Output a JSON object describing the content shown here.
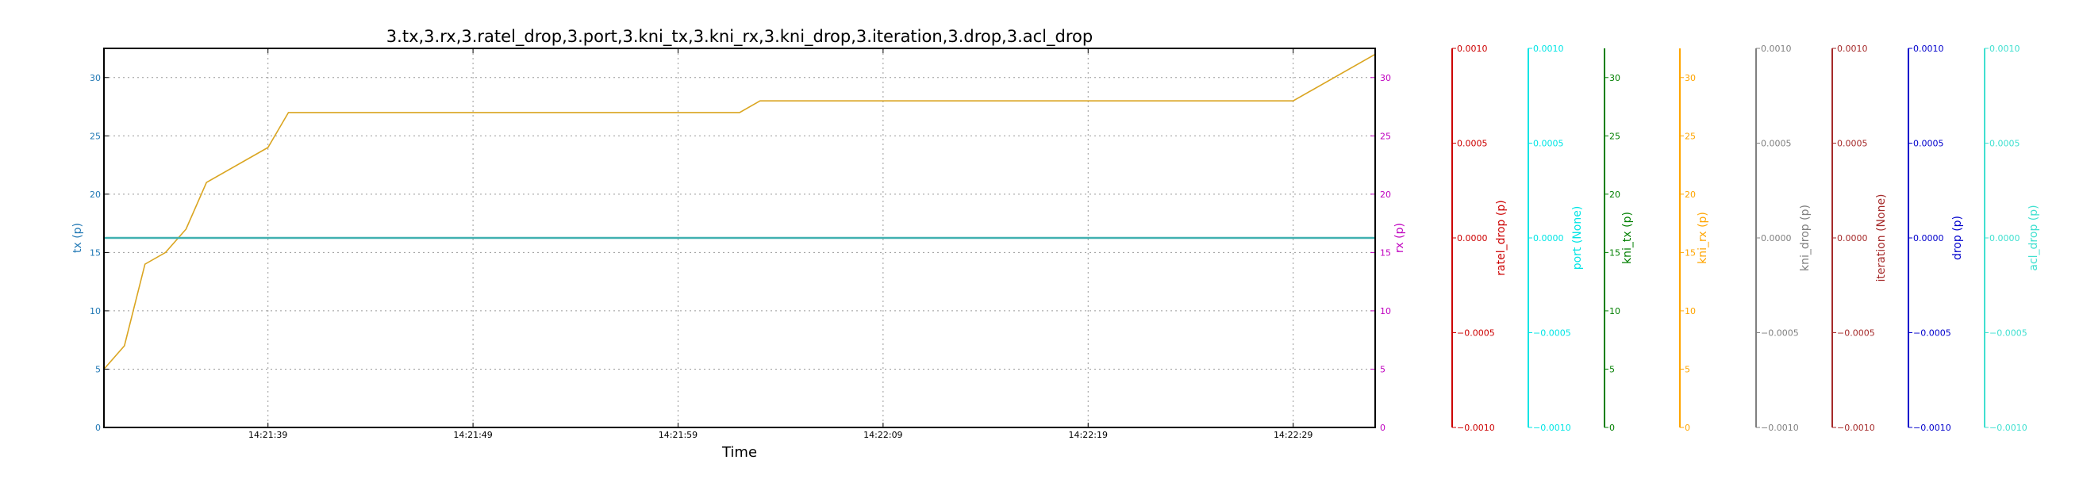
{
  "chart_data": {
    "type": "line",
    "title": "3.tx,3.rx,3.ratel_drop,3.port,3.kni_tx,3.kni_rx,3.kni_drop,3.iteration,3.drop,3.acl_drop",
    "xlabel": "Time",
    "x_ticks": [
      "14:21:39",
      "14:21:49",
      "14:21:59",
      "14:22:09",
      "14:22:19",
      "14:22:29"
    ],
    "x_tick_seconds": [
      39,
      49,
      59,
      69,
      79,
      89
    ],
    "xlim_seconds": [
      31,
      93
    ],
    "grid": true,
    "axes": [
      {
        "label": "tx (p)",
        "color": "#1f77b4",
        "side": "left",
        "ylim": [
          0,
          32.5
        ],
        "ticks": [
          "0",
          "5",
          "10",
          "15",
          "20",
          "25",
          "30"
        ]
      },
      {
        "label": "rx (p)",
        "color": "#bf00bf",
        "side": "right",
        "ylim": [
          0,
          32.5
        ],
        "ticks": [
          "0",
          "5",
          "10",
          "15",
          "20",
          "25",
          "30"
        ]
      },
      {
        "label": "ratel_drop (p)",
        "color": "#cc0000",
        "side": "right",
        "ylim": [
          -0.001,
          0.001
        ],
        "ticks": [
          "−0.0010",
          "−0.0005",
          "0.0000",
          "0.0005",
          "0.0010"
        ]
      },
      {
        "label": "port (None)",
        "color": "#00e5e5",
        "side": "right",
        "ylim": [
          -0.001,
          0.001
        ],
        "ticks": [
          "−0.0010",
          "−0.0005",
          "0.0000",
          "0.0005",
          "0.0010"
        ]
      },
      {
        "label": "kni_tx (p)",
        "color": "#007f00",
        "side": "right",
        "ylim": [
          0,
          32.5
        ],
        "ticks": [
          "0",
          "5",
          "10",
          "15",
          "20",
          "25",
          "30"
        ]
      },
      {
        "label": "kni_rx (p)",
        "color": "#ffa500",
        "side": "right",
        "ylim": [
          0,
          32.5
        ],
        "ticks": [
          "0",
          "5",
          "10",
          "15",
          "20",
          "25",
          "30"
        ]
      },
      {
        "label": "kni_drop (p)",
        "color": "#808080",
        "side": "right",
        "ylim": [
          -0.001,
          0.001
        ],
        "ticks": [
          "−0.0010",
          "−0.0005",
          "0.0000",
          "0.0005",
          "0.0010"
        ]
      },
      {
        "label": "iteration (None)",
        "color": "#a52a2a",
        "side": "right",
        "ylim": [
          -0.001,
          0.001
        ],
        "ticks": [
          "−0.0010",
          "−0.0005",
          "0.0000",
          "0.0005",
          "0.0010"
        ]
      },
      {
        "label": "drop (p)",
        "color": "#0000cc",
        "side": "right",
        "ylim": [
          -0.001,
          0.001
        ],
        "ticks": [
          "−0.0010",
          "−0.0005",
          "0.0000",
          "0.0005",
          "0.0010"
        ]
      },
      {
        "label": "acl_drop (p)",
        "color": "#40e0d0",
        "side": "right",
        "ylim": [
          -0.001,
          0.001
        ],
        "ticks": [
          "−0.0010",
          "−0.0005",
          "0.0000",
          "0.0005",
          "0.0010"
        ]
      }
    ],
    "series": [
      {
        "axis": 5,
        "color": "#daa520",
        "x": [
          31,
          32,
          33,
          34,
          35,
          36,
          39,
          40,
          62,
          63,
          89,
          93
        ],
        "y": [
          5,
          7,
          14,
          15,
          17,
          21,
          24,
          27,
          27,
          28,
          28,
          32
        ]
      },
      {
        "axis": 3,
        "color": "#40b0b0",
        "x": [
          31,
          93
        ],
        "y": [
          0,
          0
        ]
      }
    ]
  }
}
